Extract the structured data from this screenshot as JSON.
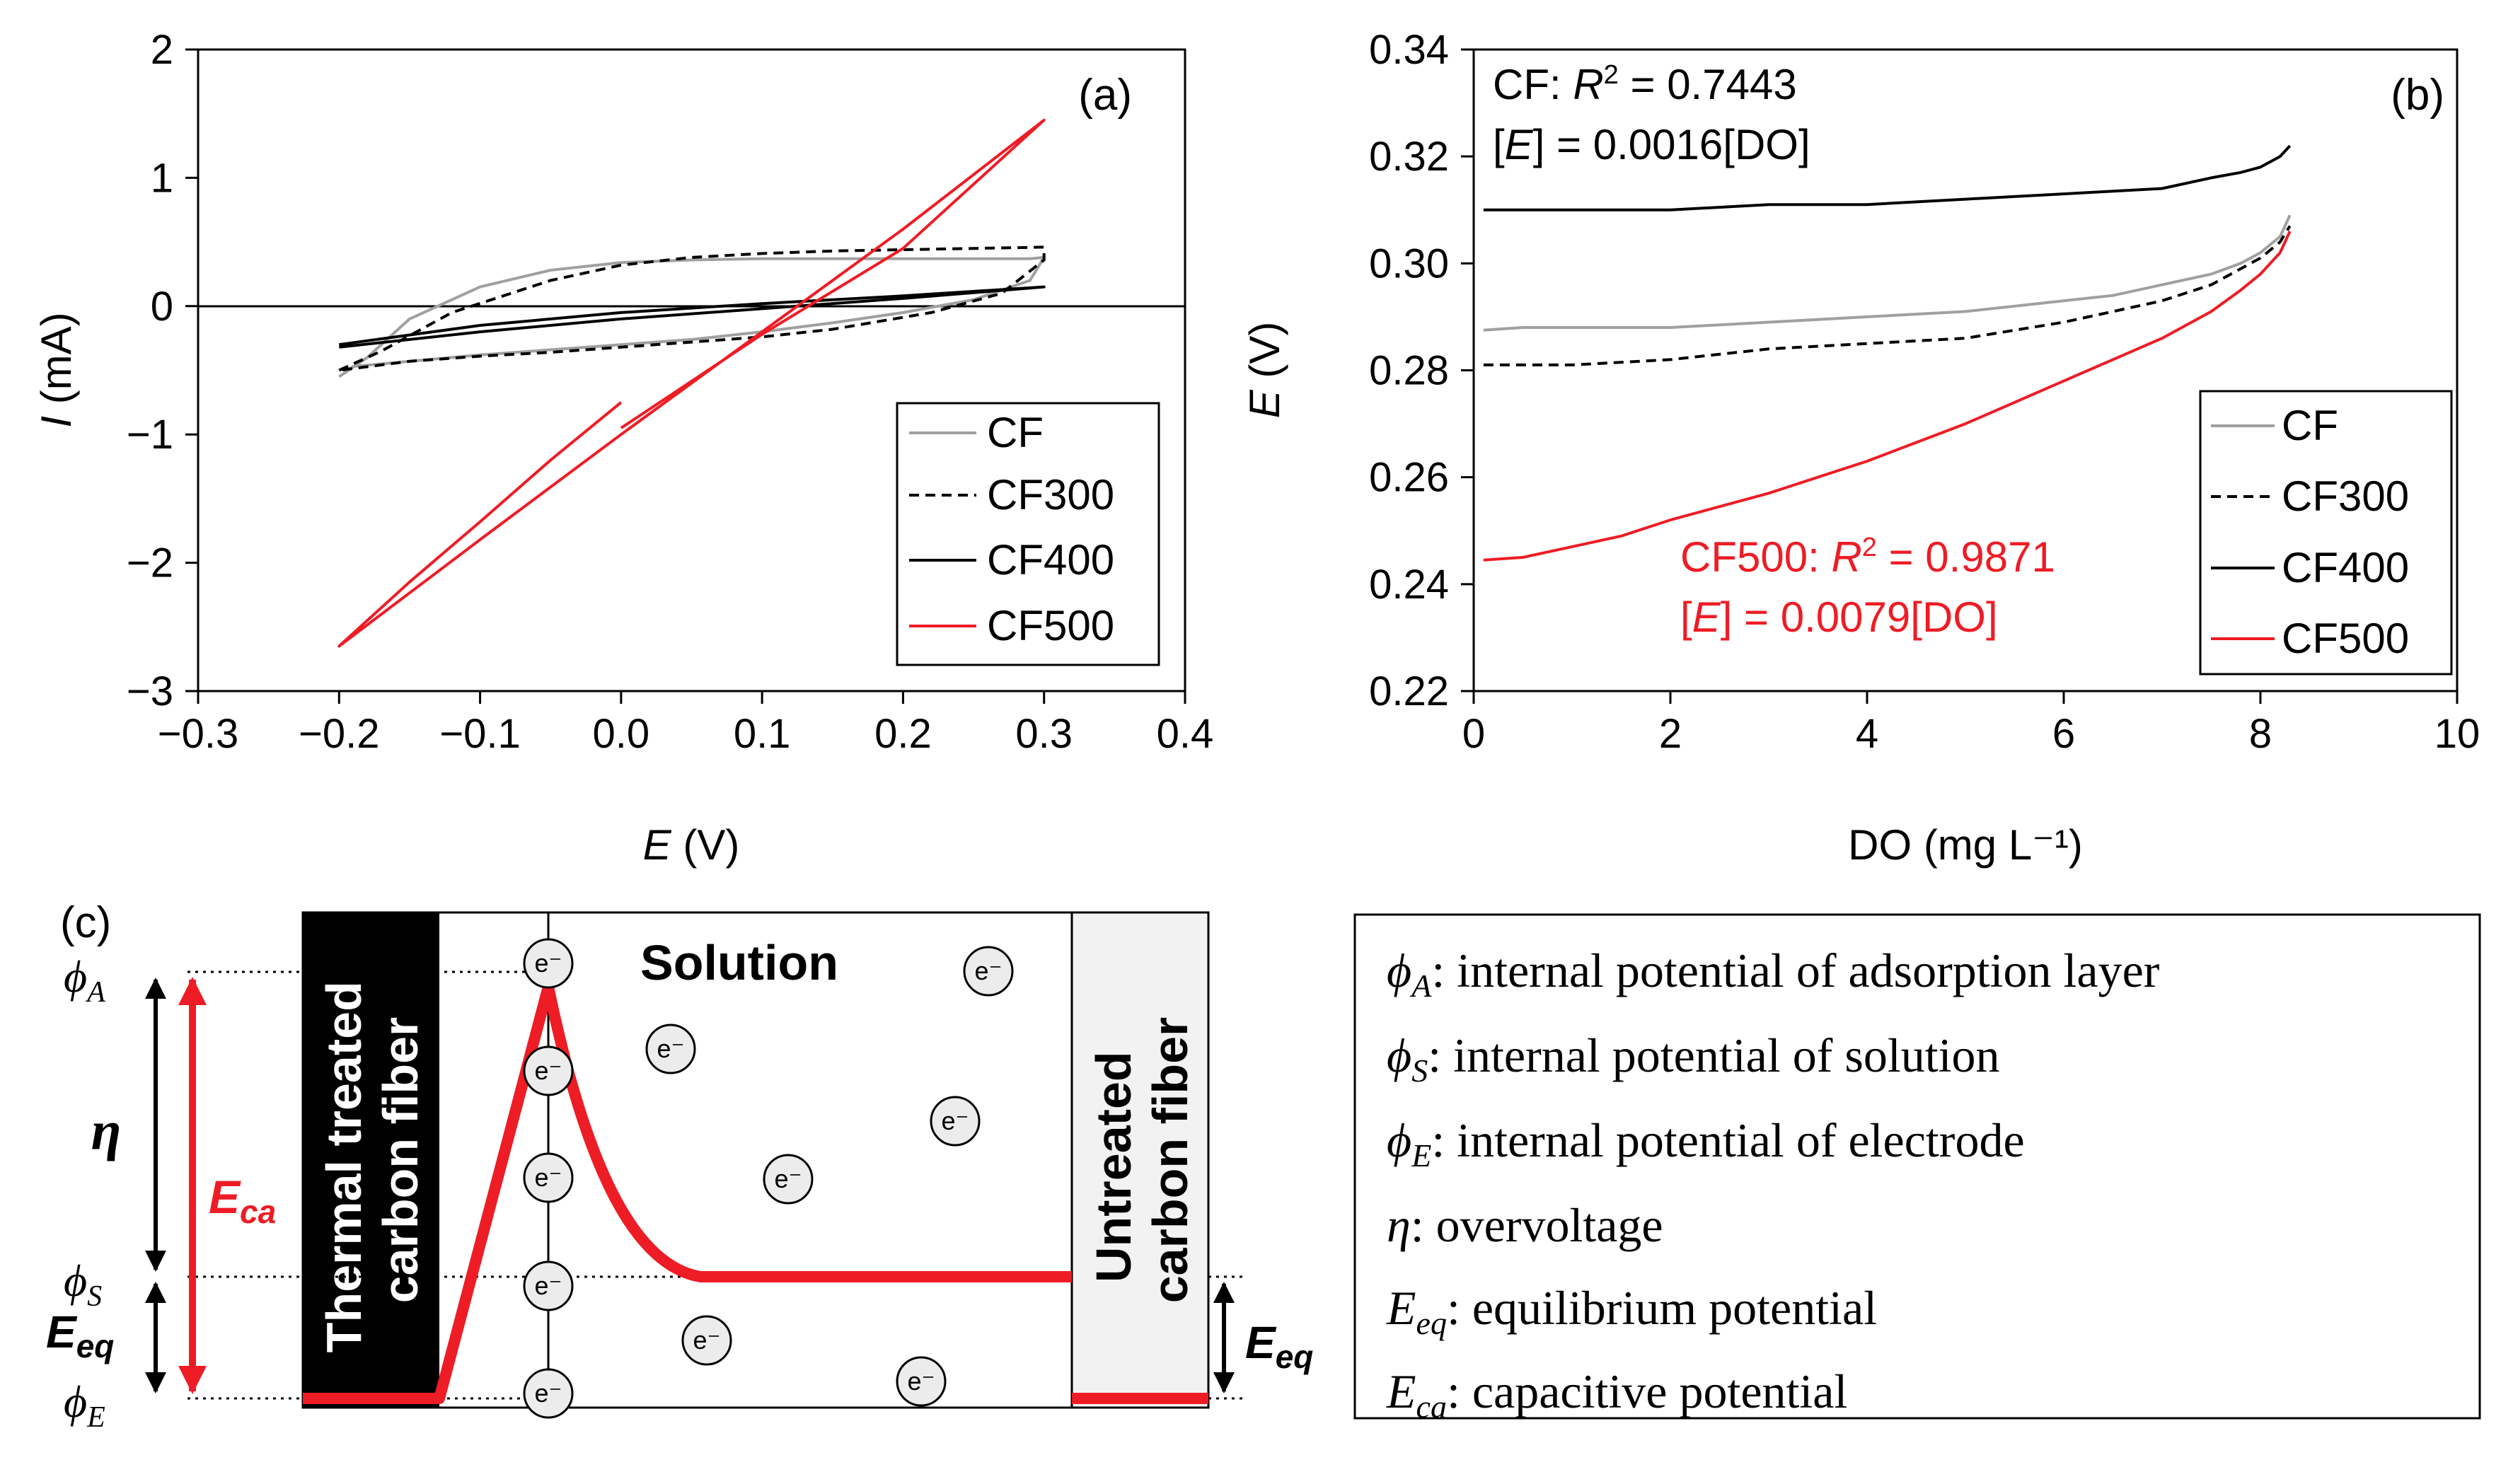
{
  "chart_data": [
    {
      "type": "line",
      "panel": "(a)",
      "title": "",
      "xlabel_italic": "E",
      "xlabel_rest": " (V)",
      "ylabel_italic": "I",
      "ylabel_rest": " (mA)",
      "xlim": [
        -0.3,
        0.4
      ],
      "ylim": [
        -3,
        2
      ],
      "xticks": [
        -0.3,
        -0.2,
        -0.1,
        0.0,
        0.1,
        0.2,
        0.3,
        0.4
      ],
      "xtick_labels": [
        "−0.3",
        "−0.2",
        "−0.1",
        "0.0",
        "0.1",
        "0.2",
        "0.3",
        "0.4"
      ],
      "yticks": [
        -3,
        -2,
        -1,
        0,
        1,
        2
      ],
      "ytick_labels": [
        "−3",
        "−2",
        "−1",
        "0",
        "1",
        "2"
      ],
      "legend_position": "bottom-right",
      "series": [
        {
          "name": "CF",
          "color": "#a0a0a0",
          "dash": "solid",
          "x": [
            -0.2,
            -0.18,
            -0.15,
            -0.1,
            -0.05,
            0.0,
            0.05,
            0.1,
            0.15,
            0.2,
            0.25,
            0.29,
            0.3,
            0.29,
            0.25,
            0.2,
            0.15,
            0.1,
            0.05,
            0.0,
            -0.05,
            -0.1,
            -0.15,
            -0.19,
            -0.2
          ],
          "y": [
            -0.55,
            -0.4,
            -0.1,
            0.15,
            0.28,
            0.34,
            0.36,
            0.37,
            0.37,
            0.37,
            0.37,
            0.37,
            0.38,
            0.2,
            0.05,
            -0.05,
            -0.13,
            -0.2,
            -0.26,
            -0.3,
            -0.34,
            -0.38,
            -0.43,
            -0.47,
            -0.55
          ]
        },
        {
          "name": "CF300",
          "color": "#000000",
          "dash": "dashed",
          "x": [
            -0.2,
            -0.17,
            -0.12,
            -0.05,
            0.0,
            0.05,
            0.1,
            0.15,
            0.2,
            0.25,
            0.3,
            0.3,
            0.27,
            0.22,
            0.15,
            0.1,
            0.05,
            0.0,
            -0.05,
            -0.1,
            -0.15,
            -0.2
          ],
          "y": [
            -0.5,
            -0.35,
            -0.05,
            0.2,
            0.32,
            0.38,
            0.41,
            0.43,
            0.44,
            0.45,
            0.46,
            0.36,
            0.1,
            -0.05,
            -0.18,
            -0.24,
            -0.28,
            -0.32,
            -0.36,
            -0.39,
            -0.43,
            -0.5
          ]
        },
        {
          "name": "CF400",
          "color": "#000000",
          "dash": "solid",
          "x": [
            -0.2,
            -0.1,
            0.0,
            0.1,
            0.2,
            0.3,
            0.2,
            0.1,
            0.0,
            -0.1,
            -0.2
          ],
          "y": [
            -0.3,
            -0.15,
            -0.05,
            0.02,
            0.08,
            0.15,
            0.06,
            -0.02,
            -0.1,
            -0.2,
            -0.32
          ]
        },
        {
          "name": "CF500",
          "color": "#ee1c25",
          "dash": "solid",
          "x": [
            0.0,
            -0.05,
            -0.1,
            -0.15,
            -0.2,
            -0.1,
            0.0,
            0.1,
            0.2,
            0.3,
            0.2,
            0.1,
            0.0
          ],
          "y": [
            -0.75,
            -1.2,
            -1.68,
            -2.15,
            -2.65,
            -1.82,
            -1.0,
            -0.2,
            0.6,
            1.45,
            0.45,
            -0.22,
            -0.95
          ]
        }
      ]
    },
    {
      "type": "line",
      "panel": "(b)",
      "title": "",
      "xlabel": "DO (mg L⁻¹)",
      "ylabel_italic": "E",
      "ylabel_rest": " (V)",
      "xlim": [
        0,
        10
      ],
      "ylim": [
        0.22,
        0.34
      ],
      "xticks": [
        0,
        2,
        4,
        6,
        8,
        10
      ],
      "xtick_labels": [
        "0",
        "2",
        "4",
        "6",
        "8",
        "10"
      ],
      "yticks": [
        0.22,
        0.24,
        0.26,
        0.28,
        0.3,
        0.32,
        0.34
      ],
      "ytick_labels": [
        "0.22",
        "0.24",
        "0.26",
        "0.28",
        "0.30",
        "0.32",
        "0.34"
      ],
      "legend_position": "bottom-right",
      "series": [
        {
          "name": "CF",
          "color": "#a0a0a0",
          "dash": "solid",
          "x": [
            0.1,
            0.5,
            1.0,
            2.0,
            3.0,
            4.0,
            5.0,
            6.0,
            6.5,
            7.0,
            7.5,
            7.8,
            8.0,
            8.2,
            8.3
          ],
          "y": [
            0.2875,
            0.288,
            0.288,
            0.288,
            0.289,
            0.29,
            0.291,
            0.293,
            0.294,
            0.296,
            0.298,
            0.3,
            0.302,
            0.305,
            0.309
          ]
        },
        {
          "name": "CF300",
          "color": "#000000",
          "dash": "dashed",
          "x": [
            0.1,
            1.0,
            2.0,
            3.0,
            4.0,
            5.0,
            6.0,
            6.5,
            7.0,
            7.5,
            7.8,
            8.0,
            8.2,
            8.3
          ],
          "y": [
            0.281,
            0.281,
            0.282,
            0.284,
            0.285,
            0.286,
            0.289,
            0.291,
            0.293,
            0.296,
            0.299,
            0.301,
            0.304,
            0.307
          ]
        },
        {
          "name": "CF400",
          "color": "#000000",
          "dash": "solid",
          "x": [
            0.1,
            1.0,
            2.0,
            3.0,
            4.0,
            5.0,
            6.0,
            7.0,
            7.5,
            7.8,
            8.0,
            8.2,
            8.3
          ],
          "y": [
            0.31,
            0.31,
            0.31,
            0.311,
            0.311,
            0.312,
            0.313,
            0.314,
            0.316,
            0.317,
            0.318,
            0.32,
            0.322
          ]
        },
        {
          "name": "CF500",
          "color": "#ee1c25",
          "dash": "solid",
          "x": [
            0.1,
            0.5,
            1.0,
            1.5,
            2.0,
            3.0,
            4.0,
            5.0,
            6.0,
            6.5,
            7.0,
            7.5,
            7.8,
            8.0,
            8.2,
            8.3
          ],
          "y": [
            0.2445,
            0.245,
            0.247,
            0.249,
            0.252,
            0.257,
            0.263,
            0.27,
            0.278,
            0.282,
            0.286,
            0.291,
            0.295,
            0.298,
            0.302,
            0.306
          ]
        }
      ],
      "annotations": [
        {
          "lines": [
            "CF: R² = 0.7443",
            "[E] = 0.0016[DO]"
          ],
          "color": "#000000"
        },
        {
          "lines": [
            "CF500: R² = 0.9871",
            "[E] = 0.0079[DO]"
          ],
          "color": "#ee1c25"
        }
      ]
    }
  ],
  "notes": {
    "b_cf": {
      "prefix": "CF: ",
      "r": "R",
      "sup": "2",
      "tail": " = 0.7443"
    },
    "b_cf_eq": {
      "open": "[",
      "e": "E",
      "rest": "] = 0.0016[DO]"
    },
    "b_cf500": {
      "prefix": "CF500: ",
      "r": "R",
      "sup": "2",
      "tail": " = 0.9871"
    },
    "b_cf500_eq": {
      "open": "[",
      "e": "E",
      "rest": "] = 0.0079[DO]"
    }
  },
  "diagram": {
    "panel": "(c)",
    "left_electrode": [
      "Thermal treated",
      "carbon fiber"
    ],
    "right_electrode": [
      "Untreated",
      "carbon fiber"
    ],
    "solution": "Solution",
    "electron": "e⁻",
    "phi": "ϕ",
    "phi_A_sub": "A",
    "phi_S_sub": "S",
    "phi_E_sub": "E",
    "eta": "η",
    "E": "E",
    "ca_sub": "ca",
    "eq_sub": "eq",
    "colors": {
      "red": "#ee1c25",
      "dark": "#000000",
      "light_fill": "#f2f2f2"
    }
  },
  "definitions": [
    {
      "sym": "ϕ",
      "sub": "A",
      "text": ": internal potential of adsorption layer"
    },
    {
      "sym": "ϕ",
      "sub": "S",
      "text": ": internal potential of solution"
    },
    {
      "sym": "ϕ",
      "sub": "E",
      "text": ": internal potential of electrode"
    },
    {
      "sym": "η",
      "sub": "",
      "text": ": overvoltage"
    },
    {
      "sym": "E",
      "sub": "eq",
      "text": ": equilibrium potential"
    },
    {
      "sym": "E",
      "sub": "ca",
      "text": ": capacitive potential"
    }
  ]
}
